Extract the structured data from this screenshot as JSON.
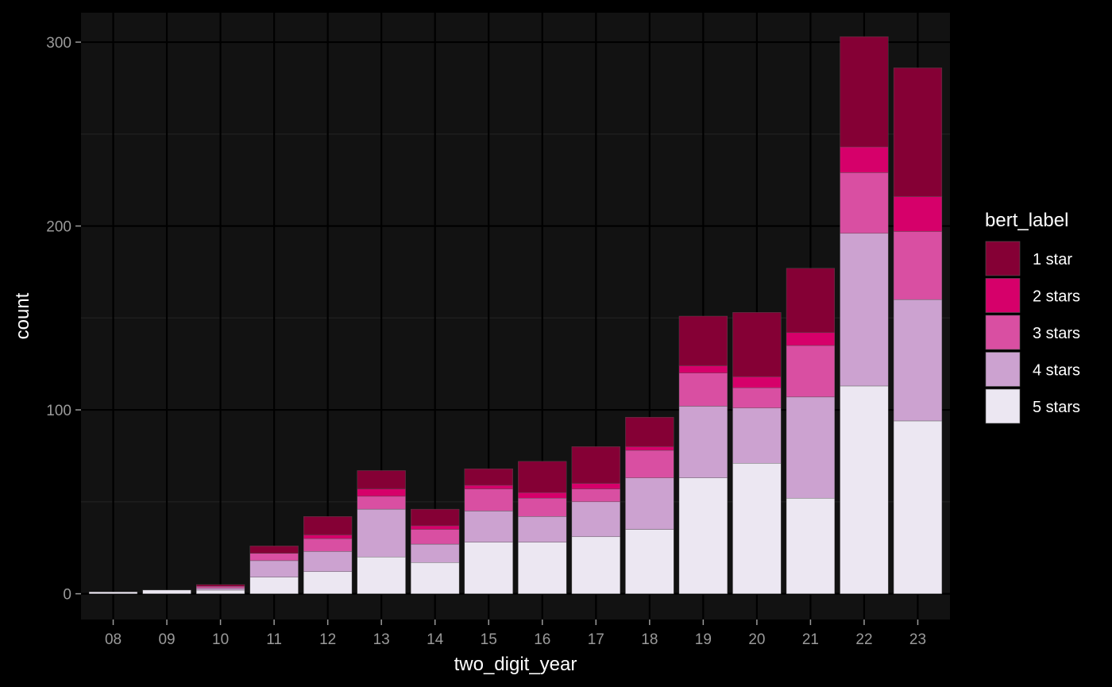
{
  "chart_data": {
    "type": "bar",
    "stacked": true,
    "xlabel": "two_digit_year",
    "ylabel": "count",
    "ylim": [
      -14,
      316
    ],
    "yticks": [
      0,
      100,
      200,
      300
    ],
    "grid": true,
    "legend_title": "bert_label",
    "legend_position": "right",
    "categories": [
      "08",
      "09",
      "10",
      "11",
      "12",
      "13",
      "14",
      "15",
      "16",
      "17",
      "18",
      "19",
      "20",
      "21",
      "22",
      "23"
    ],
    "series": [
      {
        "name": "5 stars",
        "color": "#ece7f2",
        "values": [
          1,
          2,
          2,
          9,
          12,
          20,
          17,
          28,
          28,
          31,
          35,
          63,
          71,
          52,
          113,
          94
        ]
      },
      {
        "name": "4 stars",
        "color": "#cca2d0",
        "values": [
          0,
          0,
          1,
          9,
          11,
          26,
          10,
          17,
          14,
          19,
          28,
          39,
          30,
          55,
          83,
          66
        ]
      },
      {
        "name": "3 stars",
        "color": "#d94fa2",
        "values": [
          0,
          0,
          1,
          4,
          7,
          7,
          8,
          12,
          10,
          7,
          15,
          18,
          11,
          28,
          33,
          37
        ]
      },
      {
        "name": "2 stars",
        "color": "#d6006a",
        "values": [
          0,
          0,
          0,
          0,
          2,
          4,
          2,
          2,
          3,
          3,
          2,
          4,
          6,
          7,
          14,
          19
        ]
      },
      {
        "name": "1 star",
        "color": "#850035",
        "values": [
          0,
          0,
          1,
          4,
          10,
          10,
          9,
          9,
          17,
          20,
          16,
          27,
          35,
          35,
          60,
          70
        ]
      }
    ]
  },
  "colors": {
    "page_background": "#000000",
    "panel_background": "#121212",
    "grid_major": "#000000",
    "grid_minor": "#232323",
    "tick_text": "#9a9a9a",
    "title_text": "#ffffff"
  }
}
